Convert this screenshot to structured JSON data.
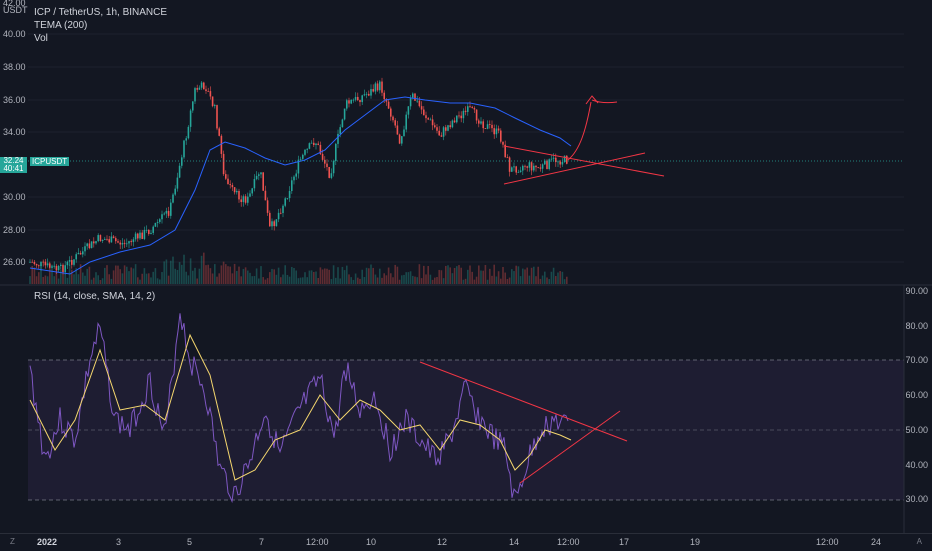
{
  "header": {
    "symbol_line": "ICP / TetherUS, 1h, BINANCE",
    "indicator_tema": "TEMA (200)",
    "indicator_vol": "Vol"
  },
  "price_scale": {
    "currency": "USDT",
    "top_value": "42.00",
    "ticks": [
      "40.00",
      "38.00",
      "36.00",
      "34.00",
      "32.00",
      "30.00",
      "28.00",
      "26.00"
    ],
    "current_price": "32.24",
    "countdown": "40:41",
    "symbol_tag": "ICPUSDT"
  },
  "rsi": {
    "legend": "RSI (14, close, SMA, 14, 2)",
    "ticks": [
      "90.00",
      "80.00",
      "70.00",
      "60.00",
      "50.00",
      "40.00",
      "30.00"
    ]
  },
  "time_axis": {
    "labels": [
      "2022",
      "3",
      "5",
      "7",
      "12:00",
      "10",
      "12",
      "14",
      "12:00",
      "17",
      "19",
      "12:00",
      "24"
    ]
  },
  "corner": {
    "left": "Z",
    "right": "A"
  },
  "colors": {
    "background": "#131722",
    "up_candle": "#26a69a",
    "down_candle": "#ef5350",
    "tema_line": "#2962ff",
    "rsi_line": "#7e57c2",
    "rsi_ma": "#f5d76e",
    "trendline": "#f23645"
  }
}
